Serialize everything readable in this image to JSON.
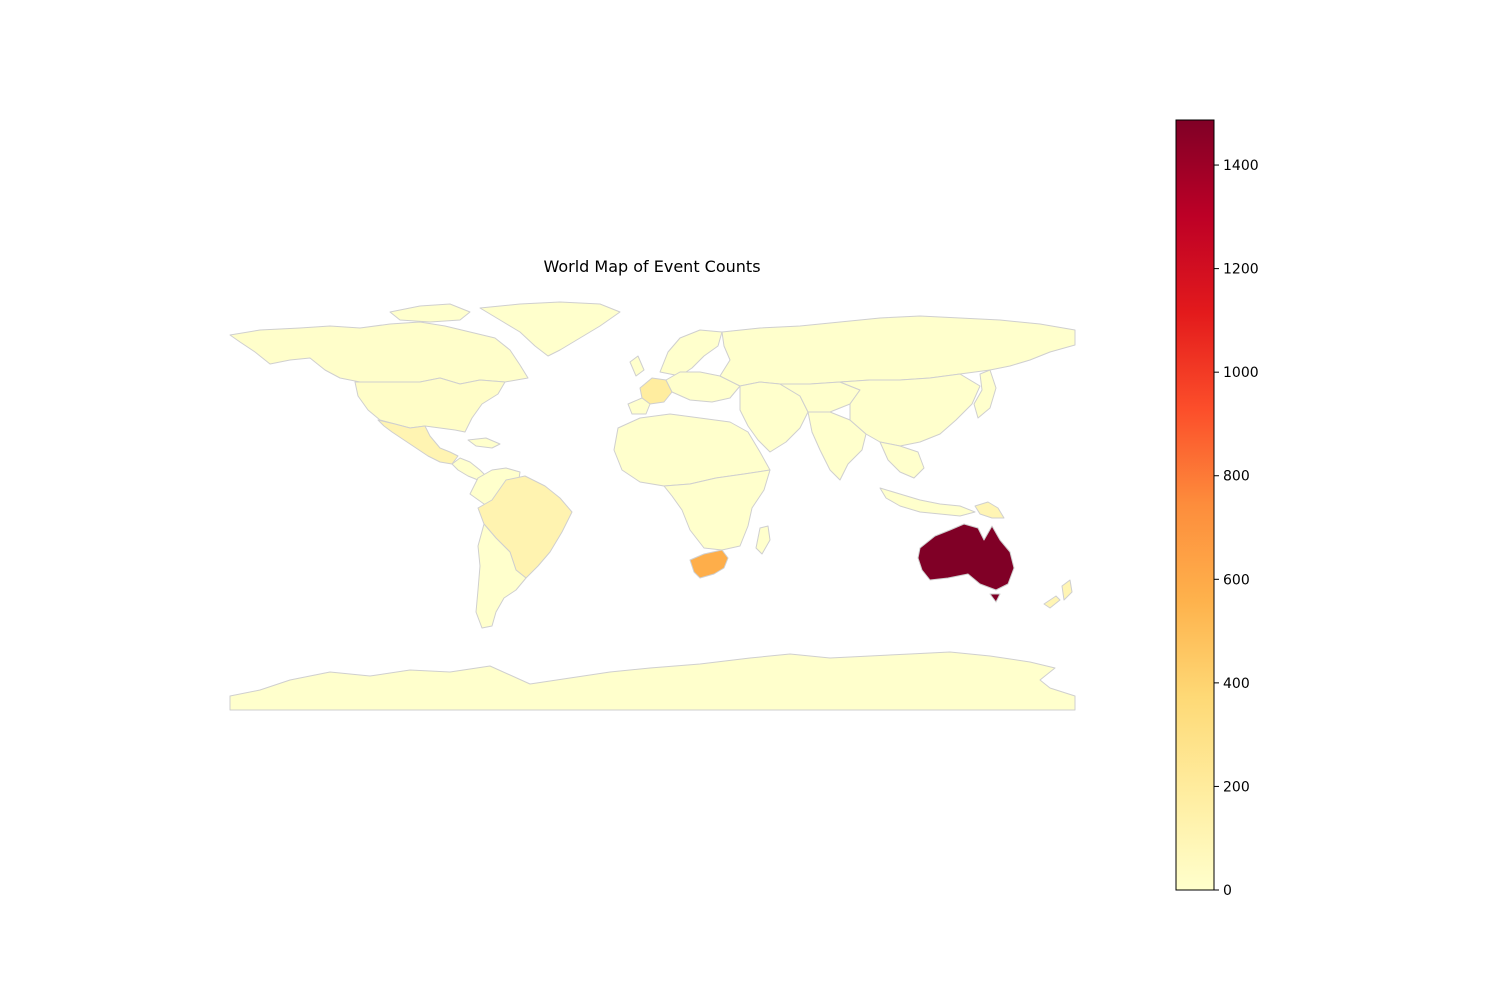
{
  "chart_data": {
    "type": "choropleth",
    "title": "World Map of Event Counts",
    "colormap": "YlOrRd",
    "color_range": [
      0,
      1487
    ],
    "colorbar": {
      "ticks": [
        0,
        200,
        400,
        600,
        800,
        1000,
        1200,
        1400
      ],
      "tick_labels": [
        "0",
        "200",
        "400",
        "600",
        "800",
        "1000",
        "1200",
        "1400"
      ]
    },
    "regions": [
      {
        "name": "Australia",
        "value": 1487
      },
      {
        "name": "South Africa",
        "value": 580
      },
      {
        "name": "France",
        "value": 190
      },
      {
        "name": "Brazil",
        "value": 120
      },
      {
        "name": "Mexico",
        "value": 110
      },
      {
        "name": "Papua New Guinea",
        "value": 100
      },
      {
        "name": "New Zealand",
        "value": 100
      },
      {
        "name": "United States",
        "value": 20
      },
      {
        "name": "Canada",
        "value": 10
      },
      {
        "name": "Other countries",
        "value": 0
      }
    ],
    "colors": {
      "border": "#cfcfcf",
      "scale": [
        "#ffffcc",
        "#ffeda0",
        "#fed976",
        "#feb24c",
        "#fd8d3c",
        "#fc4e2a",
        "#e31a1c",
        "#bd0026",
        "#800026"
      ]
    }
  }
}
